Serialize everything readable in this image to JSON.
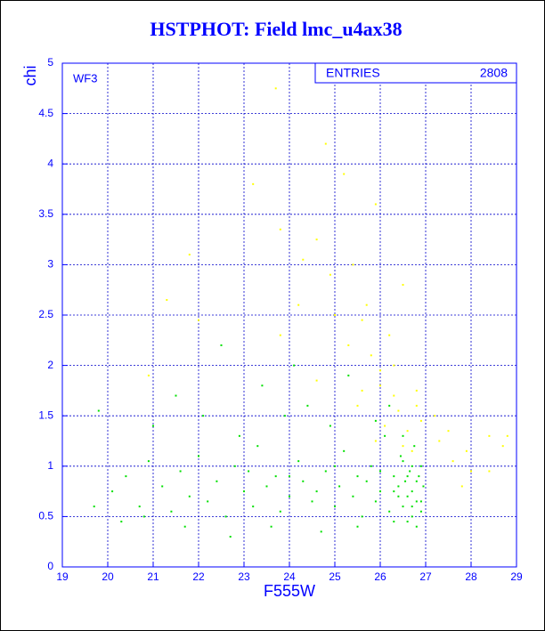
{
  "chart_data": {
    "type": "scatter",
    "title": "HSTPHOT: Field lmc_u4ax38",
    "xlabel": "F555W",
    "ylabel": "chi",
    "annotation": "WF3",
    "stats": {
      "label": "ENTRIES",
      "value": 2808
    },
    "xlim": [
      19,
      29
    ],
    "ylim": [
      0,
      5
    ],
    "xticks": [
      19,
      20,
      21,
      22,
      23,
      24,
      25,
      26,
      27,
      28,
      29
    ],
    "yticks": [
      0,
      0.5,
      1,
      1.5,
      2,
      2.5,
      3,
      3.5,
      4,
      4.5,
      5
    ],
    "grid": true,
    "series": [
      {
        "color": "#00e000",
        "x": [
          20.1,
          20.4,
          20.7,
          20.9,
          21.2,
          21.4,
          21.6,
          21.8,
          22.0,
          22.2,
          22.4,
          22.6,
          22.8,
          23.0,
          23.2,
          23.3,
          23.5,
          23.7,
          23.8,
          24.0,
          24.2,
          24.3,
          24.5,
          24.6,
          24.8,
          25.0,
          25.1,
          25.2,
          25.4,
          25.5,
          25.6,
          25.7,
          25.8,
          25.9,
          26.0,
          26.1,
          26.2,
          26.3,
          26.4,
          26.45,
          26.5,
          26.55,
          26.6,
          26.65,
          26.7,
          26.75,
          26.8,
          26.85,
          26.9,
          26.95,
          19.7,
          19.8,
          20.3,
          21.0,
          21.5,
          22.1,
          22.5,
          22.9,
          23.4,
          23.9,
          24.1,
          24.4,
          24.9,
          25.3,
          25.9,
          26.2,
          26.5,
          26.7,
          26.8,
          26.3,
          25.5,
          24.7,
          23.6,
          22.7,
          21.7,
          20.8,
          23.1,
          24.0,
          25.0,
          26.0,
          26.6,
          26.9,
          26.4,
          26.7,
          26.8,
          26.5,
          26.6,
          26.9,
          26.3,
          26.7
        ],
        "values": [
          0.75,
          0.9,
          0.6,
          1.05,
          0.8,
          0.55,
          0.95,
          0.7,
          1.1,
          0.65,
          0.85,
          0.5,
          1.0,
          0.75,
          0.6,
          1.2,
          0.8,
          0.9,
          0.55,
          0.7,
          1.05,
          0.85,
          0.65,
          0.75,
          0.95,
          0.6,
          0.8,
          1.15,
          0.7,
          0.9,
          0.5,
          0.85,
          1.0,
          0.65,
          0.75,
          1.3,
          0.55,
          0.9,
          0.7,
          1.1,
          0.6,
          0.85,
          0.45,
          0.95,
          0.75,
          1.2,
          0.65,
          0.9,
          0.55,
          0.8,
          0.6,
          1.55,
          0.45,
          1.4,
          1.7,
          1.5,
          2.2,
          1.3,
          1.8,
          1.5,
          2.0,
          1.6,
          1.4,
          1.9,
          1.45,
          1.6,
          1.3,
          1.0,
          0.4,
          0.45,
          0.4,
          0.35,
          0.4,
          0.3,
          0.4,
          0.5,
          0.95,
          0.9,
          1.0,
          0.95,
          0.7,
          1.0,
          0.8,
          0.6,
          0.85,
          1.05,
          0.9,
          0.65,
          0.75,
          0.5
        ]
      },
      {
        "color": "#ffff00",
        "x": [
          23.7,
          24.8,
          25.2,
          23.2,
          25.9,
          21.8,
          23.8,
          24.6,
          25.4,
          26.5,
          21.3,
          24.2,
          25.0,
          25.6,
          26.2,
          23.8,
          25.3,
          25.8,
          26.0,
          24.6,
          20.9,
          25.6,
          26.3,
          26.8,
          27.2,
          27.5,
          28.4,
          28.7,
          28.8,
          27.9,
          27.6,
          28.0,
          27.3,
          26.9,
          26.6,
          26.4,
          26.1,
          25.9,
          26.5,
          26.7,
          26.3,
          25.7,
          24.9,
          24.3,
          26.0,
          27.8,
          28.4,
          25.5,
          26.8,
          22.0
        ],
        "values": [
          4.75,
          4.2,
          3.9,
          3.8,
          3.6,
          3.1,
          3.35,
          3.25,
          3.0,
          2.8,
          2.65,
          2.6,
          2.5,
          2.45,
          2.3,
          2.3,
          2.2,
          2.1,
          1.95,
          1.85,
          1.9,
          1.75,
          1.7,
          1.6,
          1.5,
          1.35,
          1.3,
          1.2,
          1.3,
          1.15,
          1.05,
          0.95,
          1.25,
          1.45,
          1.35,
          1.55,
          1.4,
          1.25,
          1.2,
          1.15,
          2.0,
          2.6,
          2.9,
          3.05,
          1.8,
          0.8,
          0.95,
          1.6,
          1.75,
          2.45
        ]
      }
    ]
  }
}
